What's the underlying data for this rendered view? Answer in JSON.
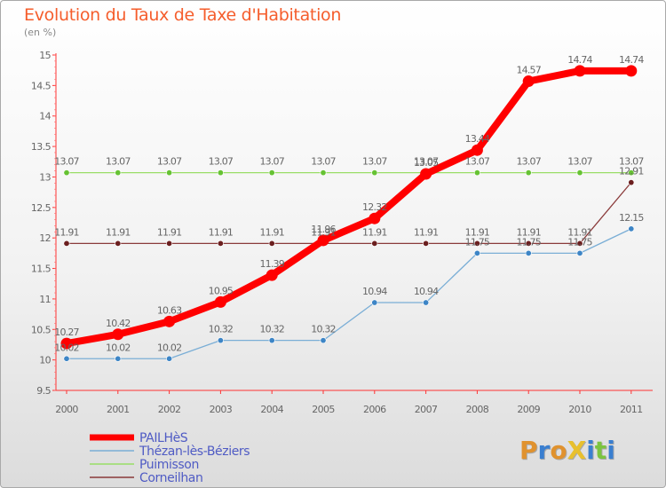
{
  "title": "Evolution du Taux de Taxe d'Habitation",
  "unit_label": "(en %)",
  "logo": {
    "text": "ProXiti",
    "letter_colors": [
      "#e0922e",
      "#3a7fd0",
      "#e0922e",
      "#e8c02e",
      "#3a7fd0",
      "#7cc43f",
      "#3a7fd0"
    ]
  },
  "chart_data": {
    "type": "line",
    "title": "Evolution du Taux de Taxe d'Habitation",
    "ylabel": "(en %)",
    "xlabel": "",
    "x": [
      "2000",
      "2001",
      "2002",
      "2003",
      "2004",
      "2005",
      "2006",
      "2007",
      "2008",
      "2009",
      "2010",
      "2011"
    ],
    "ylim": [
      9.5,
      15
    ],
    "yticks": [
      "9.5",
      "10",
      "10.5",
      "11",
      "11.5",
      "12",
      "12.5",
      "13",
      "13.5",
      "14",
      "14.5",
      "15"
    ],
    "grid": false,
    "legend": "bottom-left",
    "series": [
      {
        "name": "PAILHèS",
        "color": "#ff0000",
        "values": [
          10.27,
          10.42,
          10.63,
          10.95,
          11.39,
          11.96,
          12.32,
          13.05,
          13.44,
          14.57,
          14.74,
          14.74
        ],
        "labels": [
          "10.27",
          "10.42",
          "10.63",
          "10.95",
          "11.39",
          "11.96",
          "12.32",
          "13.05",
          "13.44",
          "14.57",
          "14.74",
          "14.74"
        ]
      },
      {
        "name": "Thézan-lès-Béziers",
        "color": "#7aaed6",
        "marker": "#3d85c6",
        "values": [
          10.02,
          10.02,
          10.02,
          10.32,
          10.32,
          10.32,
          10.94,
          10.94,
          11.75,
          11.75,
          11.75,
          12.15
        ],
        "labels": [
          "10.02",
          "10.02",
          "10.02",
          "10.32",
          "10.32",
          "10.32",
          "10.94",
          "10.94",
          "11.75",
          "11.75",
          "11.75",
          "12.15"
        ]
      },
      {
        "name": "Puimisson",
        "color": "#99dd66",
        "marker": "#66c233",
        "values": [
          13.07,
          13.07,
          13.07,
          13.07,
          13.07,
          13.07,
          13.07,
          13.07,
          13.07,
          13.07,
          13.07,
          13.07
        ],
        "labels": [
          "13.07",
          "13.07",
          "13.07",
          "13.07",
          "13.07",
          "13.07",
          "13.07",
          "13.07",
          "13.07",
          "13.07",
          "13.07",
          "13.07"
        ]
      },
      {
        "name": "Corneilhan",
        "color": "#8a3a3a",
        "marker": "#6b1f1f",
        "values": [
          11.91,
          11.91,
          11.91,
          11.91,
          11.91,
          11.91,
          11.91,
          11.91,
          11.91,
          11.91,
          11.91,
          12.91
        ],
        "labels": [
          "11.91",
          "11.91",
          "11.91",
          "11.91",
          "11.91",
          "11.91",
          "11.91",
          "11.91",
          "11.91",
          "11.91",
          "11.91",
          "12.91"
        ]
      }
    ]
  }
}
